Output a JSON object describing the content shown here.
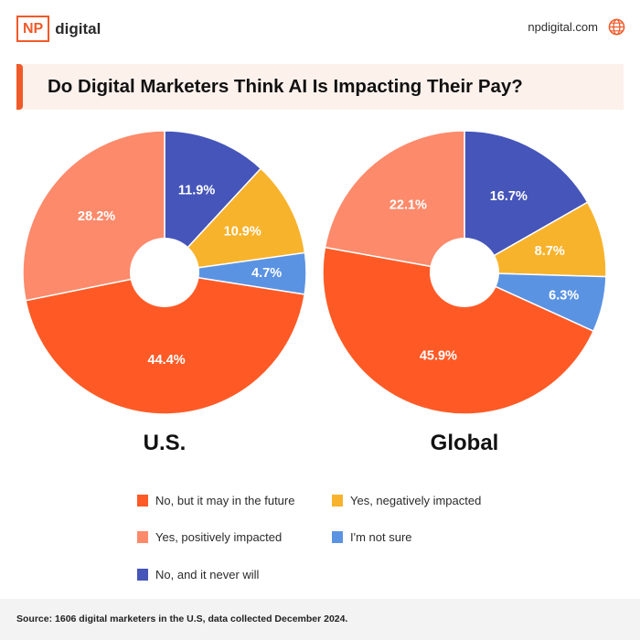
{
  "header": {
    "logo_box": "NP",
    "logo_word": "digital",
    "site": "npdigital.com",
    "site_icon": "globe-icon"
  },
  "title": "Do Digital Marketers Think AI Is Impacting Their Pay?",
  "colors": {
    "accent": "#f05a28",
    "no_future": "#ff5a26",
    "yes_positive": "#fd8a6b",
    "no_never": "#4555b9",
    "yes_negative": "#f8b32c",
    "not_sure": "#5b93e3"
  },
  "chart_data": [
    {
      "type": "pie",
      "title": "U.S.",
      "categories": [
        "No, and it never will",
        "Yes, negatively impacted",
        "I'm not sure",
        "No, but it may in the future",
        "Yes, positively impacted"
      ],
      "values": [
        11.9,
        10.9,
        4.7,
        44.4,
        28.2
      ],
      "labels": [
        "11.9%",
        "10.9%",
        "4.7%",
        "44.4%",
        "28.2%"
      ],
      "colors": [
        "#4555b9",
        "#f8b32c",
        "#5b93e3",
        "#ff5a26",
        "#fd8a6b"
      ],
      "donut": true
    },
    {
      "type": "pie",
      "title": "Global",
      "categories": [
        "No, and it never will",
        "Yes, negatively impacted",
        "I'm not sure",
        "No, but it may in the future",
        "Yes, positively impacted"
      ],
      "values": [
        16.7,
        8.7,
        6.3,
        45.9,
        22.1
      ],
      "labels": [
        "16.7%",
        "8.7%",
        "6.3%",
        "45.9%",
        "22.1%"
      ],
      "colors": [
        "#4555b9",
        "#f8b32c",
        "#5b93e3",
        "#ff5a26",
        "#fd8a6b"
      ],
      "donut": true
    }
  ],
  "legend": [
    {
      "label": "No, but it may in the future",
      "color": "#ff5a26"
    },
    {
      "label": "Yes, negatively impacted",
      "color": "#f8b32c"
    },
    {
      "label": "Yes, positively impacted",
      "color": "#fd8a6b"
    },
    {
      "label": "I'm not sure",
      "color": "#5b93e3"
    },
    {
      "label": "No, and it never will",
      "color": "#4555b9"
    }
  ],
  "footer": {
    "source": "Source: 1606 digital marketers in the U.S, data collected December 2024."
  }
}
